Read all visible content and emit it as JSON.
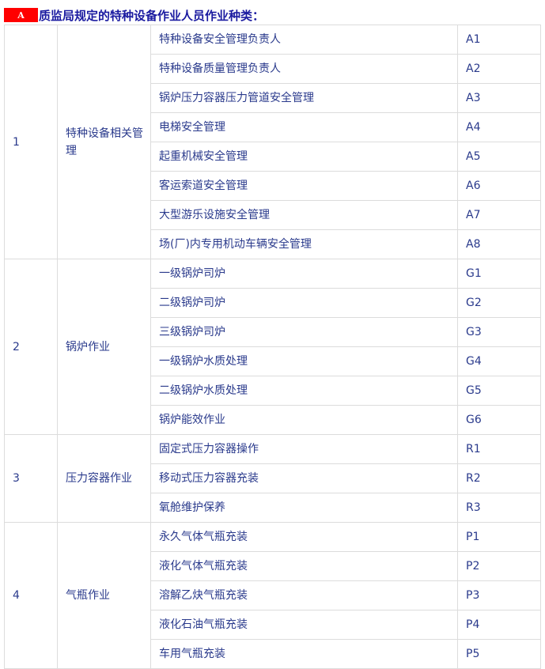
{
  "heading": {
    "badge": "A",
    "title": "质监局规定的特种设备作业人员作业种类："
  },
  "groups": [
    {
      "no": "1",
      "category": "特种设备相关管理",
      "items": [
        {
          "name": "特种设备安全管理负责人",
          "code": "A1"
        },
        {
          "name": "特种设备质量管理负责人",
          "code": "A2"
        },
        {
          "name": "锅炉压力容器压力管道安全管理",
          "code": "A3"
        },
        {
          "name": "电梯安全管理",
          "code": "A4"
        },
        {
          "name": "起重机械安全管理",
          "code": "A5"
        },
        {
          "name": "客运索道安全管理",
          "code": "A6"
        },
        {
          "name": "大型游乐设施安全管理",
          "code": "A7"
        },
        {
          "name": "场(厂)内专用机动车辆安全管理",
          "code": "A8"
        }
      ]
    },
    {
      "no": "2",
      "category": "锅炉作业",
      "items": [
        {
          "name": "一级锅炉司炉",
          "code": "G1"
        },
        {
          "name": "二级锅炉司炉",
          "code": "G2"
        },
        {
          "name": "三级锅炉司炉",
          "code": "G3"
        },
        {
          "name": "一级锅炉水质处理",
          "code": "G4"
        },
        {
          "name": "二级锅炉水质处理",
          "code": "G5"
        },
        {
          "name": "锅炉能效作业",
          "code": "G6"
        }
      ]
    },
    {
      "no": "3",
      "category": "压力容器作业",
      "items": [
        {
          "name": "固定式压力容器操作",
          "code": "R1"
        },
        {
          "name": "移动式压力容器充装",
          "code": "R2"
        },
        {
          "name": "氧舱维护保养",
          "code": "R3"
        }
      ]
    },
    {
      "no": "4",
      "category": "气瓶作业",
      "items": [
        {
          "name": "永久气体气瓶充装",
          "code": "P1"
        },
        {
          "name": "液化气体气瓶充装",
          "code": "P2"
        },
        {
          "name": "溶解乙炔气瓶充装",
          "code": "P3"
        },
        {
          "name": "液化石油气瓶充装",
          "code": "P4"
        },
        {
          "name": "车用气瓶充装",
          "code": "P5"
        }
      ]
    }
  ]
}
